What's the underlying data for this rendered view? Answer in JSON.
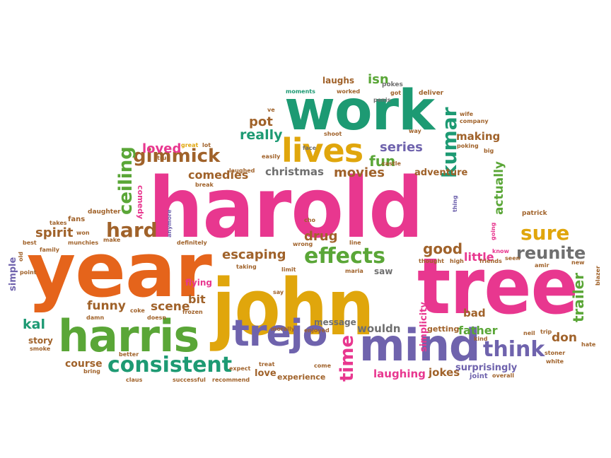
{
  "words": [
    {
      "text": "harold",
      "color": "pink"
    },
    {
      "text": "year",
      "color": "orange"
    },
    {
      "text": "john",
      "color": "gold"
    },
    {
      "text": "tree",
      "color": "pink"
    },
    {
      "text": "work",
      "color": "teal"
    },
    {
      "text": "harris",
      "color": "green"
    },
    {
      "text": "mind",
      "color": "purple"
    },
    {
      "text": "trejo",
      "color": "purple"
    },
    {
      "text": "lives",
      "color": "gold"
    },
    {
      "text": "consistent",
      "color": "teal"
    },
    {
      "text": "effects",
      "color": "green"
    },
    {
      "text": "reunite",
      "color": "gray"
    },
    {
      "text": "sure",
      "color": "gold"
    },
    {
      "text": "think",
      "color": "purple"
    },
    {
      "text": "hard",
      "color": "brown"
    },
    {
      "text": "gimmick",
      "color": "brown"
    },
    {
      "text": "ceiling",
      "color": "green"
    },
    {
      "text": "kumar",
      "color": "teal"
    },
    {
      "text": "time",
      "color": "pink"
    },
    {
      "text": "fun",
      "color": "green"
    },
    {
      "text": "escaping",
      "color": "brown"
    },
    {
      "text": "movies",
      "color": "brown"
    },
    {
      "text": "really",
      "color": "teal"
    },
    {
      "text": "series",
      "color": "purple"
    },
    {
      "text": "pot",
      "color": "brown"
    },
    {
      "text": "loved",
      "color": "pink"
    },
    {
      "text": "comedies",
      "color": "brown"
    },
    {
      "text": "christmas",
      "color": "gray"
    },
    {
      "text": "good",
      "color": "brown"
    },
    {
      "text": "drug",
      "color": "brown"
    },
    {
      "text": "little",
      "color": "pink"
    },
    {
      "text": "spirit",
      "color": "brown"
    },
    {
      "text": "funny",
      "color": "brown"
    },
    {
      "text": "scene",
      "color": "brown"
    },
    {
      "text": "bit",
      "color": "brown"
    },
    {
      "text": "kal",
      "color": "teal"
    },
    {
      "text": "laughing",
      "color": "pink"
    },
    {
      "text": "wouldn",
      "color": "gray"
    },
    {
      "text": "jokes",
      "color": "brown"
    },
    {
      "text": "father",
      "color": "green"
    },
    {
      "text": "don",
      "color": "brown"
    },
    {
      "text": "trailer",
      "color": "green"
    },
    {
      "text": "actually",
      "color": "green"
    },
    {
      "text": "making",
      "color": "brown"
    },
    {
      "text": "adventure",
      "color": "brown"
    },
    {
      "text": "isn",
      "color": "green"
    },
    {
      "text": "laughs",
      "color": "brown"
    },
    {
      "text": "bad",
      "color": "brown"
    },
    {
      "text": "course",
      "color": "brown"
    },
    {
      "text": "simplicity",
      "color": "pink"
    },
    {
      "text": "surprisingly",
      "color": "purple"
    },
    {
      "text": "love",
      "color": "brown"
    },
    {
      "text": "experience",
      "color": "brown"
    },
    {
      "text": "story",
      "color": "brown"
    },
    {
      "text": "simple",
      "color": "purple"
    },
    {
      "text": "flying",
      "color": "pink"
    },
    {
      "text": "message",
      "color": "gray"
    },
    {
      "text": "saw",
      "color": "gray"
    },
    {
      "text": "getting",
      "color": "brown"
    },
    {
      "text": "comedy",
      "color": "pink"
    },
    {
      "text": "fans",
      "color": "brown"
    },
    {
      "text": "daughter",
      "color": "brown"
    },
    {
      "text": "pokes",
      "color": "gray"
    },
    {
      "text": "deliver",
      "color": "brown"
    },
    {
      "text": "moments",
      "color": "teal"
    },
    {
      "text": "worked",
      "color": "brown"
    },
    {
      "text": "ve",
      "color": "brown"
    },
    {
      "text": "penis",
      "color": "gray"
    },
    {
      "text": "got",
      "color": "brown"
    },
    {
      "text": "wife",
      "color": "brown"
    },
    {
      "text": "company",
      "color": "brown"
    },
    {
      "text": "way",
      "color": "brown"
    },
    {
      "text": "shoot",
      "color": "brown"
    },
    {
      "text": "great",
      "color": "gold"
    },
    {
      "text": "lot",
      "color": "brown"
    },
    {
      "text": "face",
      "color": "gray"
    },
    {
      "text": "true",
      "color": "brown"
    },
    {
      "text": "easily",
      "color": "brown"
    },
    {
      "text": "poking",
      "color": "brown"
    },
    {
      "text": "big",
      "color": "brown"
    },
    {
      "text": "castle",
      "color": "brown"
    },
    {
      "text": "laughed",
      "color": "brown"
    },
    {
      "text": "break",
      "color": "brown"
    },
    {
      "text": "takes",
      "color": "brown"
    },
    {
      "text": "won",
      "color": "brown"
    },
    {
      "text": "make",
      "color": "brown"
    },
    {
      "text": "anymore",
      "color": "purple"
    },
    {
      "text": "cho",
      "color": "brown"
    },
    {
      "text": "line",
      "color": "brown"
    },
    {
      "text": "wrong",
      "color": "brown"
    },
    {
      "text": "best",
      "color": "brown"
    },
    {
      "text": "munchies",
      "color": "brown"
    },
    {
      "text": "definitely",
      "color": "brown"
    },
    {
      "text": "family",
      "color": "brown"
    },
    {
      "text": "point",
      "color": "brown"
    },
    {
      "text": "old",
      "color": "brown"
    },
    {
      "text": "taking",
      "color": "brown"
    },
    {
      "text": "limit",
      "color": "brown"
    },
    {
      "text": "say",
      "color": "brown"
    },
    {
      "text": "maria",
      "color": "brown"
    },
    {
      "text": "coke",
      "color": "brown"
    },
    {
      "text": "frozen",
      "color": "brown"
    },
    {
      "text": "damn",
      "color": "brown"
    },
    {
      "text": "doesn",
      "color": "brown"
    },
    {
      "text": "morally",
      "color": "brown"
    },
    {
      "text": "enjoyed",
      "color": "brown"
    },
    {
      "text": "smoke",
      "color": "brown"
    },
    {
      "text": "better",
      "color": "brown"
    },
    {
      "text": "expect",
      "color": "brown"
    },
    {
      "text": "treat",
      "color": "brown"
    },
    {
      "text": "come",
      "color": "brown"
    },
    {
      "text": "bring",
      "color": "brown"
    },
    {
      "text": "claus",
      "color": "brown"
    },
    {
      "text": "successful",
      "color": "brown"
    },
    {
      "text": "recommend",
      "color": "brown"
    },
    {
      "text": "joint",
      "color": "purple"
    },
    {
      "text": "overall",
      "color": "brown"
    },
    {
      "text": "white",
      "color": "brown"
    },
    {
      "text": "stoner",
      "color": "brown"
    },
    {
      "text": "kind",
      "color": "brown"
    },
    {
      "text": "neil",
      "color": "brown"
    },
    {
      "text": "trip",
      "color": "brown"
    },
    {
      "text": "hate",
      "color": "brown"
    },
    {
      "text": "patrick",
      "color": "brown"
    },
    {
      "text": "thing",
      "color": "purple"
    },
    {
      "text": "going",
      "color": "pink"
    },
    {
      "text": "know",
      "color": "pink"
    },
    {
      "text": "thought",
      "color": "brown"
    },
    {
      "text": "high",
      "color": "brown"
    },
    {
      "text": "friends",
      "color": "brown"
    },
    {
      "text": "seen",
      "color": "brown"
    },
    {
      "text": "amir",
      "color": "brown"
    },
    {
      "text": "new",
      "color": "brown"
    },
    {
      "text": "blazer",
      "color": "brown"
    }
  ]
}
